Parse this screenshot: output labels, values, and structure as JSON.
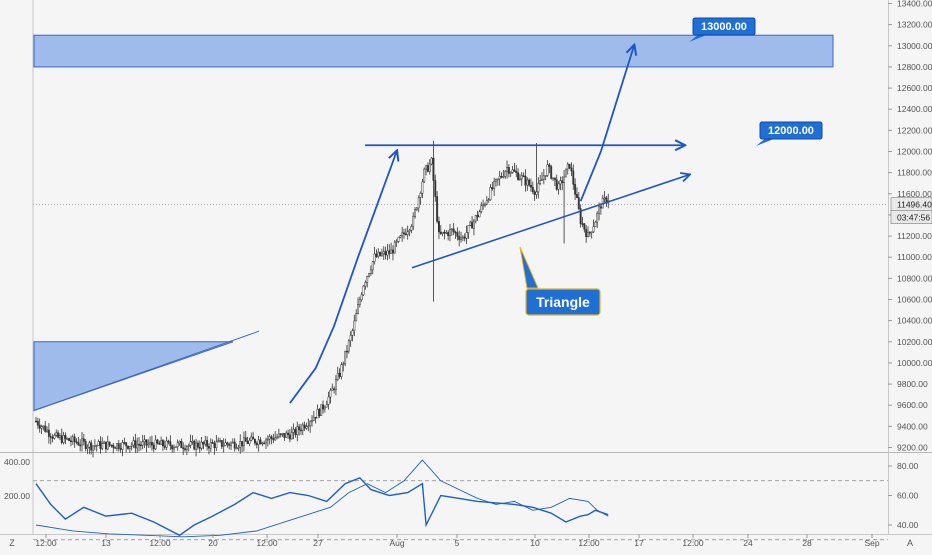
{
  "chart_data": [
    {
      "type": "candlestick",
      "title": "",
      "xlabel": "",
      "ylabel": "",
      "ylim": [
        9200,
        13400
      ],
      "y_ticks": [
        9200,
        9400,
        9600,
        9800,
        10000,
        10200,
        10400,
        10600,
        10800,
        11000,
        11200,
        11400,
        11600,
        11800,
        12000,
        12200,
        12400,
        12600,
        12800,
        13000,
        13200,
        13400
      ],
      "y_tick_labels": [
        "9200.00",
        "9400.00",
        "9600.00",
        "9800.00",
        "10000.00",
        "10200.00",
        "10400.00",
        "10600.00",
        "10800.00",
        "11000.00",
        "11200.00",
        "11400.00",
        "11600.00",
        "11800.00",
        "12000.00",
        "12200.00",
        "12400.00",
        "12600.00",
        "12800.00",
        "13000.00",
        "13200.00",
        "13400.00"
      ],
      "current_price": 11496.4,
      "current_price_label": "11496.40",
      "countdown_label": "03:47:56",
      "price_path": [
        [
          0,
          9450
        ],
        [
          10,
          9300
        ],
        [
          30,
          9220
        ],
        [
          55,
          9230
        ],
        [
          85,
          9220
        ],
        [
          110,
          9240
        ],
        [
          125,
          9280
        ],
        [
          140,
          9330
        ],
        [
          150,
          9480
        ],
        [
          155,
          9560
        ],
        [
          160,
          9700
        ],
        [
          165,
          9900
        ],
        [
          172,
          10300
        ],
        [
          178,
          10750
        ],
        [
          184,
          11000
        ],
        [
          193,
          11050
        ],
        [
          205,
          11350
        ],
        [
          211,
          11800
        ],
        [
          215,
          11900
        ],
        [
          219,
          11200
        ],
        [
          226,
          11250
        ],
        [
          232,
          11180
        ],
        [
          240,
          11400
        ],
        [
          248,
          11650
        ],
        [
          256,
          11850
        ],
        [
          264,
          11750
        ],
        [
          272,
          11620
        ],
        [
          278,
          11850
        ],
        [
          284,
          11650
        ],
        [
          290,
          11880
        ],
        [
          296,
          11350
        ],
        [
          300,
          11200
        ],
        [
          304,
          11350
        ],
        [
          307,
          11500
        ],
        [
          311,
          11560
        ]
      ],
      "resistance_zone": {
        "from": 12800,
        "to": 13100
      },
      "upper_left_zone": {
        "from": 9550,
        "to": 10200
      },
      "resistance_level": 12050,
      "support_line": {
        "from": [
          210,
          10900
        ],
        "to": [
          314,
          11580
        ]
      },
      "projection": [
        [
          311,
          11560
        ],
        [
          321,
          12020
        ],
        [
          337,
          13000
        ]
      ],
      "callouts": [
        {
          "text": "13000.00",
          "price": 13000
        },
        {
          "text": "12000.00",
          "price": 12000
        }
      ],
      "pattern_label": "Triangle",
      "x_ticks": [
        "12:00",
        "13",
        "12:00",
        "20",
        "12:00",
        "27",
        "Aug",
        "5",
        "10",
        "12:00",
        "17",
        "12:00",
        "24",
        "28",
        "Sep"
      ],
      "corner_labels": {
        "left": "Z",
        "right": "A"
      }
    },
    {
      "type": "line",
      "title": "",
      "ylim": [
        20,
        90
      ],
      "right_ticks": [
        40,
        60,
        80
      ],
      "right_tick_labels": [
        "40.00",
        "60.00",
        "80.00"
      ],
      "left_tick_labels": [
        "400.00",
        "200.00"
      ],
      "levels": [
        70,
        30
      ],
      "series": [
        {
          "values": [
            [
              0,
              68
            ],
            [
              8,
              54
            ],
            [
              16,
              44
            ],
            [
              26,
              52
            ],
            [
              38,
              46
            ],
            [
              52,
              48
            ],
            [
              64,
              42
            ],
            [
              78,
              33
            ],
            [
              86,
              40
            ],
            [
              96,
              46
            ],
            [
              108,
              54
            ],
            [
              118,
              62
            ],
            [
              128,
              58
            ],
            [
              138,
              62
            ],
            [
              148,
              60
            ],
            [
              158,
              56
            ],
            [
              168,
              68
            ],
            [
              176,
              72
            ],
            [
              182,
              64
            ],
            [
              192,
              60
            ],
            [
              202,
              62
            ],
            [
              210,
              68
            ],
            [
              212,
              40
            ],
            [
              220,
              60
            ],
            [
              230,
              58
            ],
            [
              240,
              56
            ],
            [
              250,
              55
            ],
            [
              260,
              54
            ],
            [
              270,
              52
            ],
            [
              280,
              48
            ],
            [
              288,
              42
            ],
            [
              296,
              46
            ],
            [
              300,
              47
            ],
            [
              304,
              50
            ],
            [
              311,
              47
            ]
          ]
        },
        {
          "values": [
            [
              0,
              40
            ],
            [
              20,
              36
            ],
            [
              40,
              34
            ],
            [
              60,
              33
            ],
            [
              80,
              32
            ],
            [
              100,
              33
            ],
            [
              120,
              36
            ],
            [
              140,
              44
            ],
            [
              160,
              52
            ],
            [
              170,
              62
            ],
            [
              180,
              68
            ],
            [
              190,
              62
            ],
            [
              200,
              70
            ],
            [
              210,
              84
            ],
            [
              220,
              70
            ],
            [
              230,
              64
            ],
            [
              240,
              58
            ],
            [
              250,
              54
            ],
            [
              260,
              56
            ],
            [
              270,
              50
            ],
            [
              280,
              52
            ],
            [
              290,
              58
            ],
            [
              300,
              56
            ],
            [
              305,
              50
            ],
            [
              311,
              46
            ]
          ]
        }
      ]
    }
  ]
}
